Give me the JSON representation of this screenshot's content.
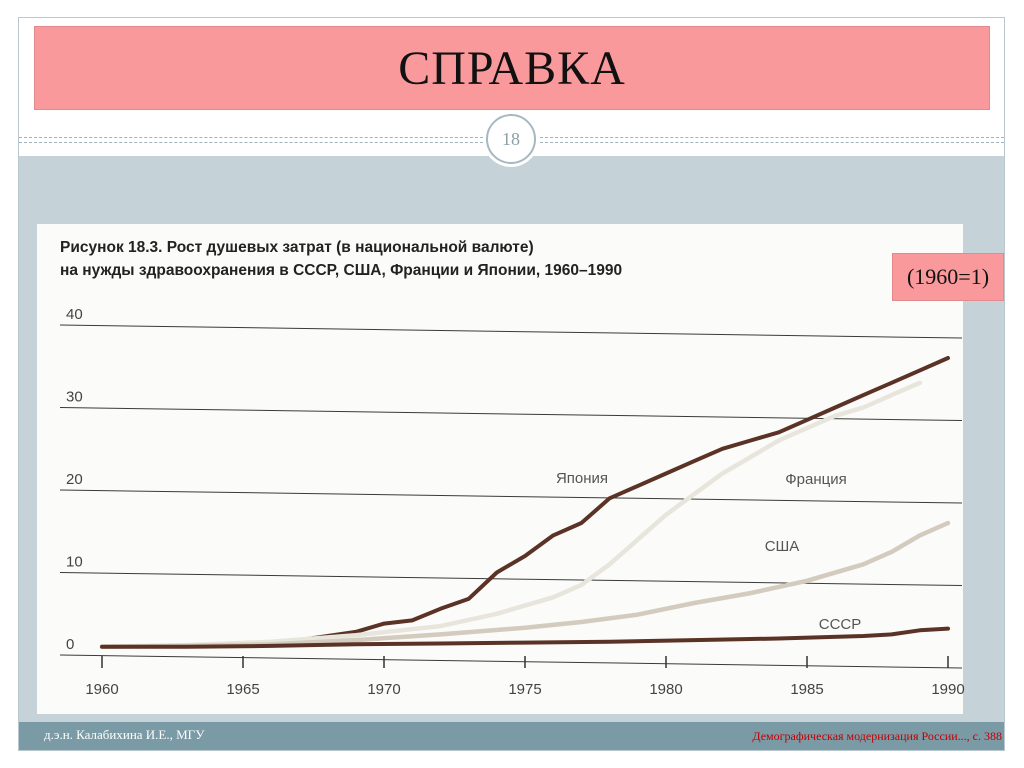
{
  "slide": {
    "title": "СПРАВКА",
    "number": "18",
    "note": "(1960=1)",
    "footer_left": "д.э.н. Калабихина И.Е., МГУ",
    "footer_right": "Демографическая модернизация России..., с. 388"
  },
  "figure": {
    "title_line1": "Рисунок 18.3. Рост душевых затрат (в национальной валюте)",
    "title_line2": "на нужды здравоохранения в СССР, США, Франции и Японии, 1960–1990"
  },
  "chart_data": {
    "type": "line",
    "title": "Рисунок 18.3. Рост душевых затрат (в национальной валюте) на нужды здравоохранения в СССР, США, Франции и Японии, 1960–1990",
    "xlabel": "",
    "ylabel": "",
    "xlim": [
      1960,
      1990
    ],
    "ylim": [
      0,
      40
    ],
    "xticks": [
      "1960",
      "1965",
      "1970",
      "1975",
      "1980",
      "1985",
      "1990"
    ],
    "yticks": [
      "0",
      "10",
      "20",
      "30",
      "40"
    ],
    "grid": true,
    "series": [
      {
        "name": "Япония",
        "color": "#5a3326",
        "points": [
          [
            1965,
            1.2
          ],
          [
            1967,
            1.8
          ],
          [
            1969,
            2.8
          ],
          [
            1970,
            3.8
          ],
          [
            1971,
            4.2
          ],
          [
            1972,
            5.6
          ],
          [
            1973,
            6.8
          ],
          [
            1974,
            10
          ],
          [
            1975,
            12
          ],
          [
            1976,
            14.5
          ],
          [
            1977,
            16
          ],
          [
            1978,
            19
          ],
          [
            1979,
            20.5
          ],
          [
            1980,
            22
          ],
          [
            1981,
            23.5
          ],
          [
            1982,
            25
          ],
          [
            1983,
            26
          ],
          [
            1984,
            27
          ],
          [
            1985,
            28.5
          ],
          [
            1986,
            30
          ],
          [
            1987,
            31.5
          ],
          [
            1988,
            33
          ],
          [
            1989,
            34.5
          ],
          [
            1990,
            36
          ]
        ]
      },
      {
        "name": "Франция",
        "color": "#e8e6dc",
        "points": [
          [
            1960,
            1
          ],
          [
            1963,
            1.2
          ],
          [
            1966,
            1.6
          ],
          [
            1969,
            2.4
          ],
          [
            1972,
            3.5
          ],
          [
            1974,
            5
          ],
          [
            1976,
            7
          ],
          [
            1977,
            8.5
          ],
          [
            1978,
            11
          ],
          [
            1979,
            14
          ],
          [
            1980,
            17
          ],
          [
            1981,
            19.5
          ],
          [
            1982,
            22
          ],
          [
            1983,
            24
          ],
          [
            1984,
            26
          ],
          [
            1985,
            27.5
          ],
          [
            1986,
            29
          ],
          [
            1987,
            30
          ],
          [
            1988,
            31.5
          ],
          [
            1989,
            33
          ]
        ]
      },
      {
        "name": "США",
        "color": "#d3cbbd",
        "points": [
          [
            1960,
            1
          ],
          [
            1963,
            1.1
          ],
          [
            1966,
            1.3
          ],
          [
            1969,
            1.8
          ],
          [
            1972,
            2.5
          ],
          [
            1975,
            3.3
          ],
          [
            1977,
            4
          ],
          [
            1979,
            4.9
          ],
          [
            1981,
            6.3
          ],
          [
            1983,
            7.5
          ],
          [
            1985,
            9
          ],
          [
            1987,
            11
          ],
          [
            1988,
            12.5
          ],
          [
            1989,
            14.5
          ],
          [
            1990,
            16
          ]
        ]
      },
      {
        "name": "СССР",
        "color": "#5a3326",
        "points": [
          [
            1960,
            1
          ],
          [
            1963,
            1
          ],
          [
            1966,
            1.1
          ],
          [
            1969,
            1.3
          ],
          [
            1972,
            1.4
          ],
          [
            1975,
            1.5
          ],
          [
            1978,
            1.6
          ],
          [
            1981,
            1.8
          ],
          [
            1984,
            2
          ],
          [
            1987,
            2.3
          ],
          [
            1988,
            2.5
          ],
          [
            1989,
            3
          ],
          [
            1990,
            3.2
          ]
        ]
      }
    ]
  }
}
